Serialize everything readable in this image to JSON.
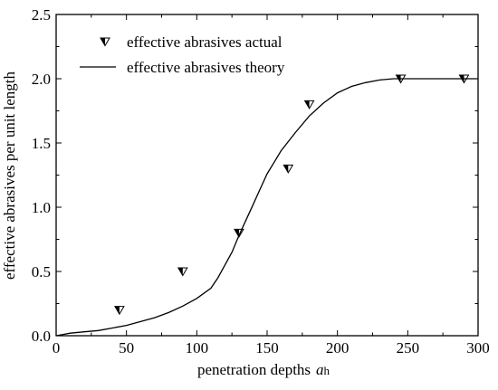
{
  "chart_data": {
    "type": "scatter",
    "xlabel": "penetration depths",
    "xlabel_symbol": "a",
    "xlabel_subscript": "h",
    "ylabel": "effective abrasives per unit length",
    "xlim": [
      0,
      300
    ],
    "ylim": [
      0,
      2.5
    ],
    "xticks": [
      0,
      50,
      100,
      150,
      200,
      250,
      300
    ],
    "xtick_labels": [
      "0",
      "50",
      "100",
      "150",
      "200",
      "250",
      "300"
    ],
    "yticks": [
      0,
      0.5,
      1.0,
      1.5,
      2.0,
      2.5
    ],
    "ytick_labels": [
      "0.0",
      "0.5",
      "1.0",
      "1.5",
      "2.0",
      "2.5"
    ],
    "grid": false,
    "legend_position": "top-left",
    "series": [
      {
        "name": "effective abrasives actual",
        "kind": "scatter",
        "marker": "half-filled down-triangle",
        "x": [
          45,
          90,
          130,
          165,
          180,
          245,
          290
        ],
        "y": [
          0.2,
          0.5,
          0.8,
          1.3,
          1.8,
          2.0,
          2.0
        ]
      },
      {
        "name": "effective abrasives theory",
        "kind": "line",
        "x": [
          0,
          5,
          10,
          20,
          30,
          40,
          50,
          60,
          70,
          80,
          90,
          100,
          110,
          115,
          120,
          125,
          130,
          135,
          140,
          145,
          150,
          155,
          160,
          170,
          180,
          190,
          200,
          210,
          220,
          230,
          240,
          245,
          250,
          260,
          270,
          280,
          290,
          300
        ],
        "y": [
          0.0,
          0.01,
          0.02,
          0.03,
          0.04,
          0.06,
          0.08,
          0.11,
          0.14,
          0.18,
          0.23,
          0.29,
          0.37,
          0.45,
          0.55,
          0.65,
          0.78,
          0.9,
          1.02,
          1.14,
          1.26,
          1.35,
          1.44,
          1.58,
          1.71,
          1.81,
          1.89,
          1.94,
          1.97,
          1.99,
          2.0,
          2.0,
          2.0,
          2.0,
          2.0,
          2.0,
          2.0,
          2.0
        ]
      }
    ]
  }
}
